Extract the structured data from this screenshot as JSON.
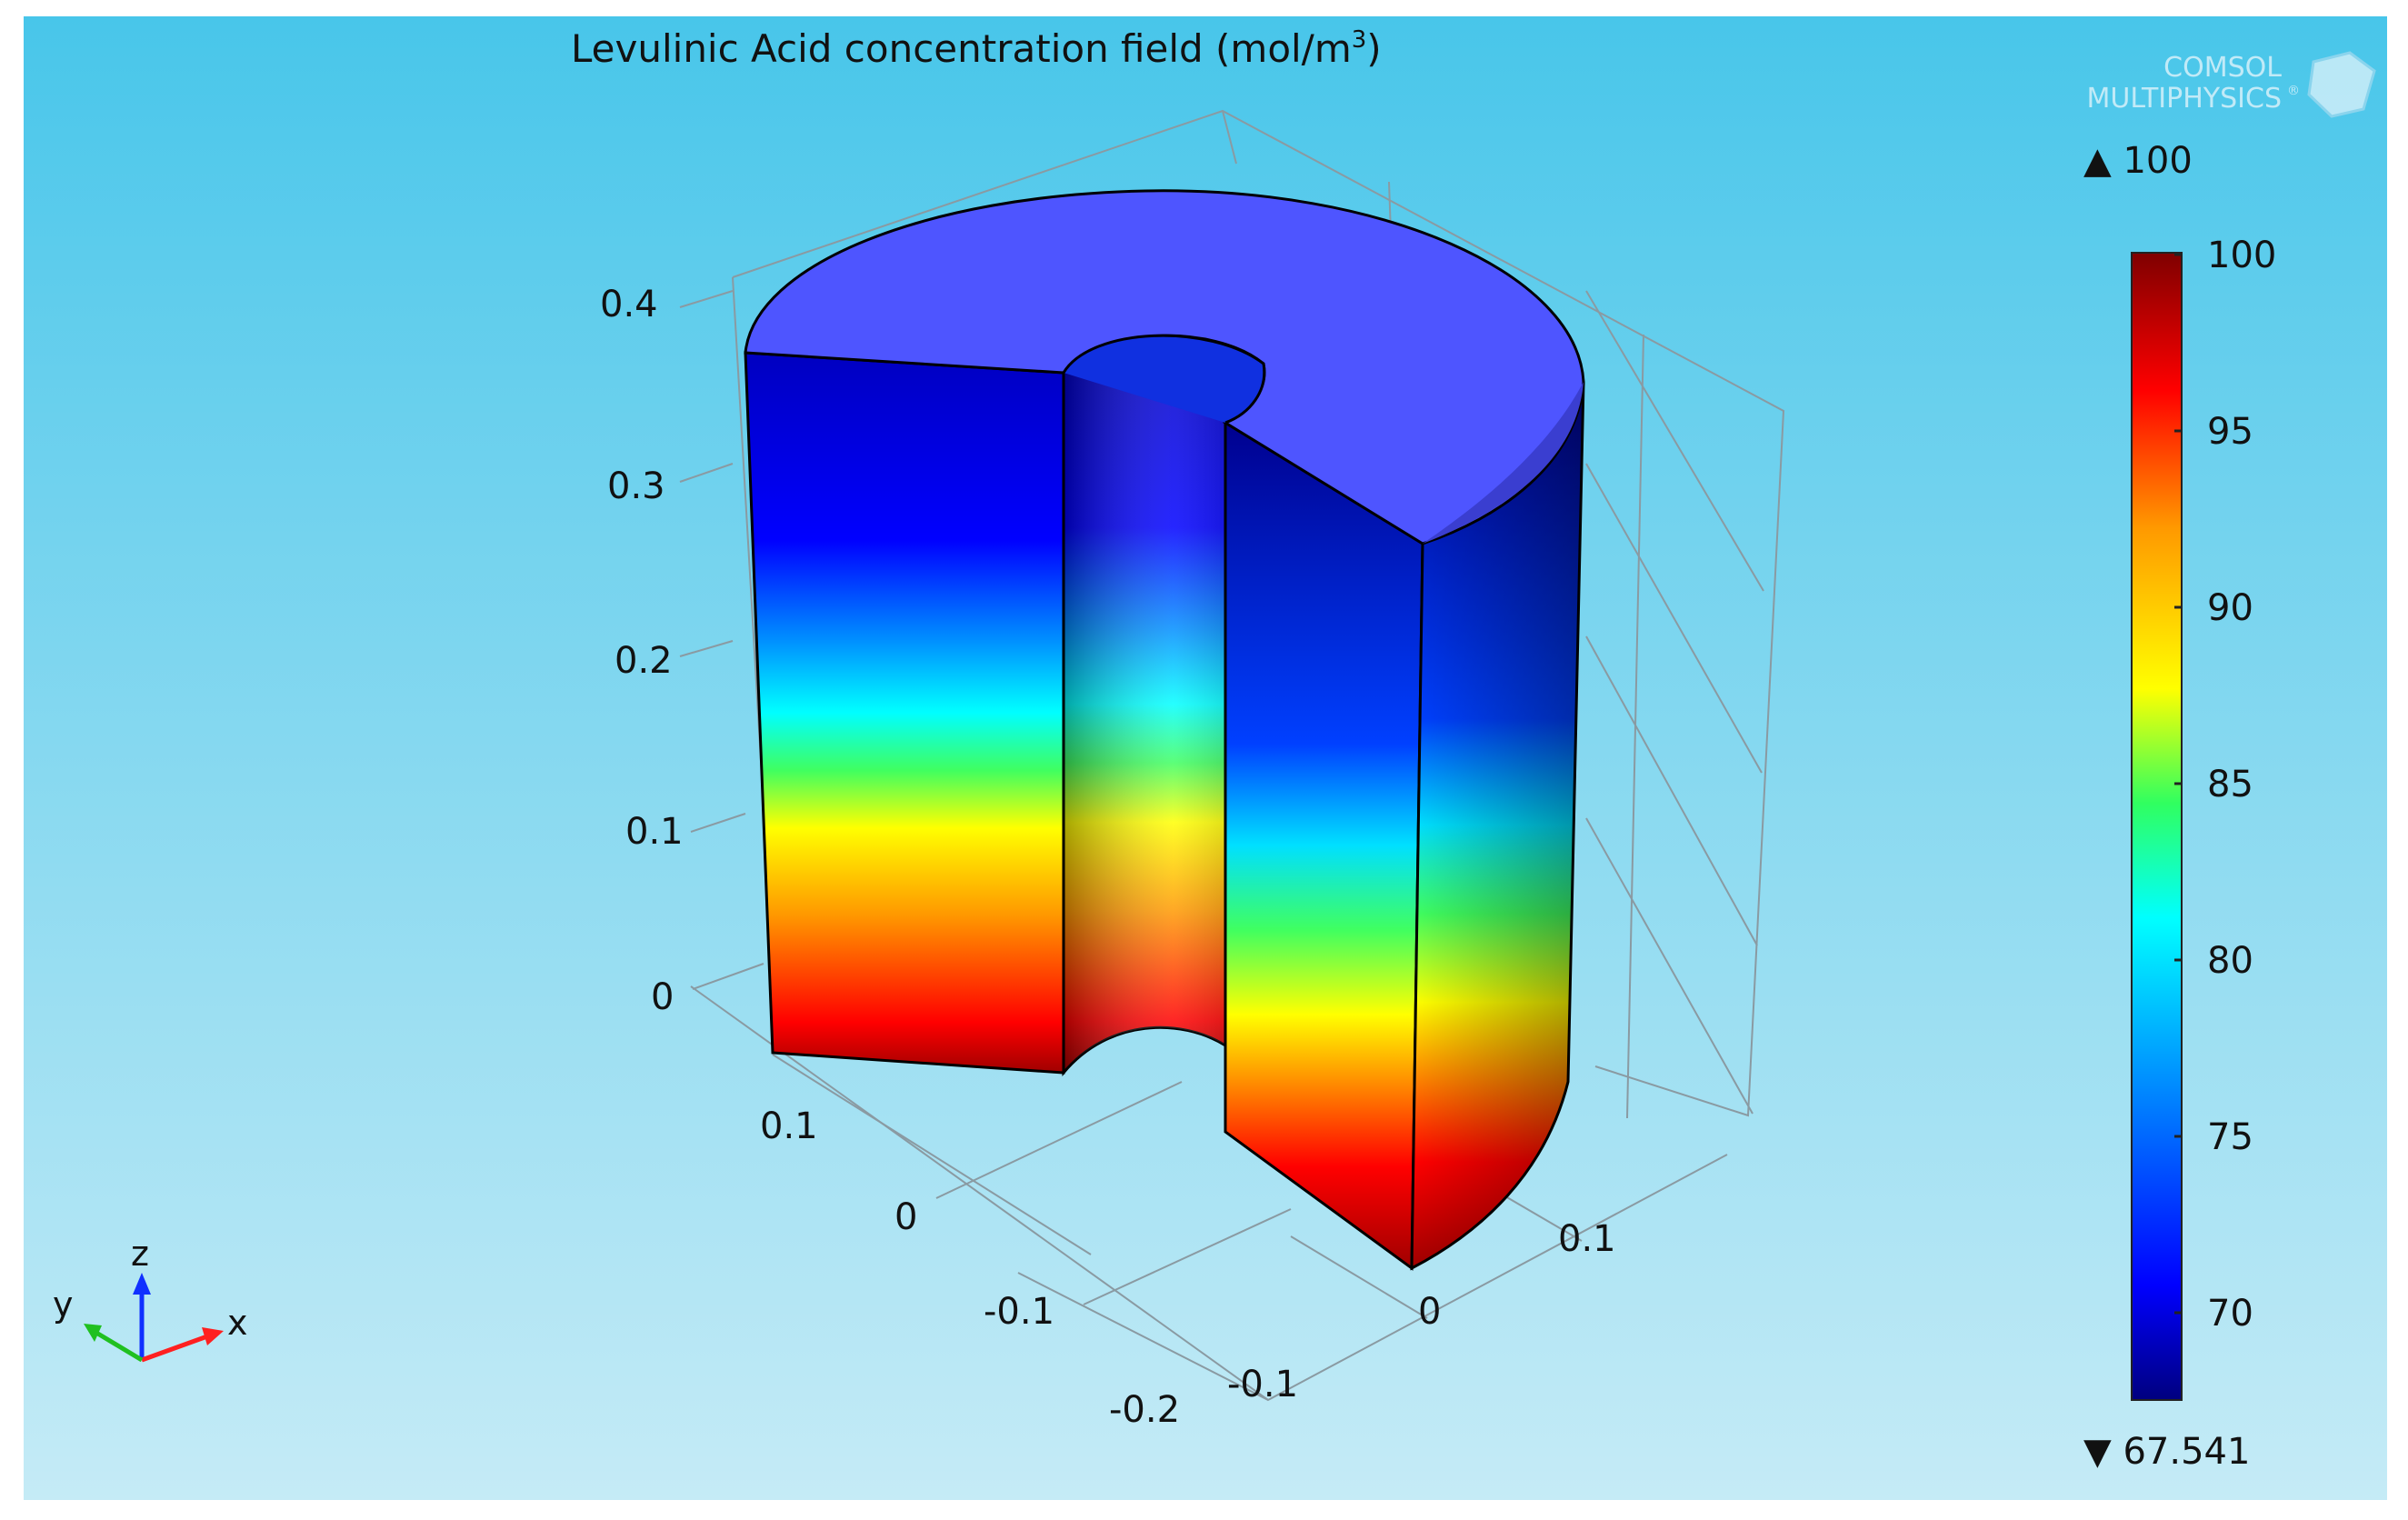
{
  "plot": {
    "title": "Levulinic Acid concentration field (mol/m",
    "title_sup": "3",
    "title_close": ")",
    "logo_line1": "COMSOL",
    "logo_line2": "MULTIPHYSICS",
    "logo_mark": "®"
  },
  "colorbar": {
    "max_label": "▲ 100",
    "min_label": "▼ 67.541",
    "ticks": [
      "100",
      "95",
      "90",
      "85",
      "80",
      "75",
      "70"
    ],
    "min": 67.541,
    "max": 100,
    "colormap": [
      "#00007f",
      "#0000ff",
      "#00a0ff",
      "#00ffff",
      "#30ff60",
      "#ffff00",
      "#ff9900",
      "#ff0000",
      "#7f0000"
    ]
  },
  "axes": {
    "z_ticks": [
      "0.4",
      "0.3",
      "0.2",
      "0.1",
      "0"
    ],
    "y_ticks": [
      "0.1",
      "0",
      "-0.1",
      "-0.2"
    ],
    "x_ticks": [
      "-0.1",
      "0",
      "0.1"
    ]
  },
  "triad": {
    "x": "x",
    "y": "y",
    "z": "z"
  },
  "colors": {
    "background_top": "#48c6ea",
    "background_bottom": "#c5ebf6",
    "top_face": "#4e55ff"
  }
}
